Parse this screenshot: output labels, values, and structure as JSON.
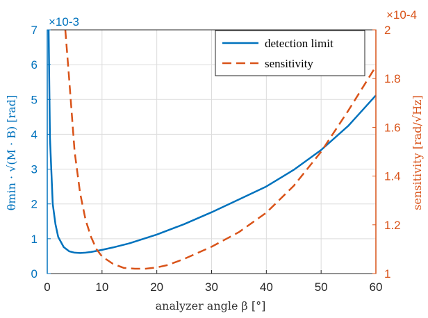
{
  "chart_data": {
    "type": "line",
    "xlabel": "analyzer angle β [°]",
    "xlim": [
      0,
      60
    ],
    "x_ticks": [
      "0",
      "10",
      "20",
      "30",
      "40",
      "50",
      "60"
    ],
    "grid": true,
    "legend_position": "top-right",
    "left_axis": {
      "label": "θmin · √(M · B) [rad]",
      "multiplier": "×10-3",
      "ylim": [
        0,
        7
      ],
      "ticks": [
        "0",
        "1",
        "2",
        "3",
        "4",
        "5",
        "6",
        "7"
      ],
      "color": "#0072BD"
    },
    "right_axis": {
      "label": "sensitivity [rad/√Hz]",
      "multiplier": "×10-4",
      "ylim": [
        1.0,
        2.0
      ],
      "ticks": [
        "1",
        "1.2",
        "1.4",
        "1.6",
        "1.8",
        "2"
      ],
      "color": "#D95319"
    },
    "series": [
      {
        "name": "detection limit",
        "axis": "left",
        "style": "solid",
        "color": "#0072BD",
        "x": [
          0.25,
          0.5,
          1,
          1.5,
          2,
          3,
          4,
          5,
          6,
          7,
          8,
          10,
          12,
          15,
          20,
          25,
          30,
          35,
          40,
          45,
          50,
          55,
          60
        ],
        "y": [
          7.0,
          3.9,
          2.0,
          1.42,
          1.05,
          0.76,
          0.64,
          0.6,
          0.59,
          0.6,
          0.62,
          0.68,
          0.75,
          0.87,
          1.12,
          1.42,
          1.76,
          2.13,
          2.5,
          2.98,
          3.55,
          4.25,
          5.12
        ]
      },
      {
        "name": "sensitivity",
        "axis": "right",
        "style": "dashed",
        "color": "#D95319",
        "x": [
          3.3,
          4,
          5,
          6,
          7,
          8,
          9,
          10,
          12,
          14,
          16,
          18,
          20,
          22,
          25,
          30,
          35,
          40,
          45,
          50,
          55,
          60
        ],
        "y": [
          2.0,
          1.8,
          1.5,
          1.33,
          1.22,
          1.15,
          1.1,
          1.07,
          1.04,
          1.023,
          1.02,
          1.02,
          1.025,
          1.035,
          1.06,
          1.11,
          1.17,
          1.25,
          1.36,
          1.5,
          1.67,
          1.85
        ]
      }
    ]
  }
}
